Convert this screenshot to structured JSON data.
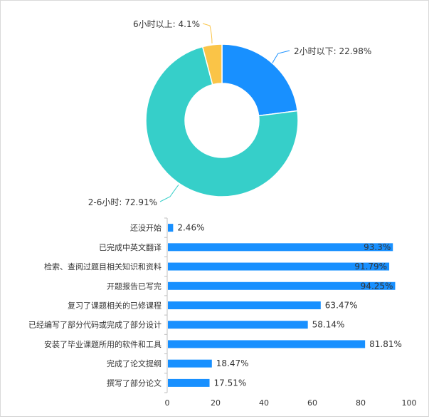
{
  "chart_data": [
    {
      "type": "pie",
      "donut": true,
      "slices": [
        {
          "label": "2小时以下",
          "value": 22.98,
          "display": "2小时以下: 22.98%",
          "color": "#1890ff"
        },
        {
          "label": "2-6小时",
          "value": 72.91,
          "display": "2-6小时: 72.91%",
          "color": "#36cfc9"
        },
        {
          "label": "6小时以上",
          "value": 4.1,
          "display": "6小时以上: 4.1%",
          "color": "#fac447"
        }
      ]
    },
    {
      "type": "bar",
      "orientation": "horizontal",
      "color": "#1890ff",
      "xlim": [
        0,
        100
      ],
      "xticks": [
        0,
        20,
        40,
        60,
        80,
        100
      ],
      "grid": false,
      "categories": [
        "还没开始",
        "已完成中英文翻译",
        "检索、查阅过题目相关知识和资料",
        "开题报告已写完",
        "复习了课题相关的已修课程",
        "已经编写了部分代码或完成了部分设计",
        "安装了毕业课题所用的软件和工具",
        "完成了论文提纲",
        "撰写了部分论文"
      ],
      "values": [
        2.46,
        93.3,
        91.79,
        94.25,
        63.47,
        58.14,
        81.81,
        18.47,
        17.51
      ],
      "labels": [
        "2.46%",
        "93.3%",
        "91.79%",
        "94.25%",
        "63.47%",
        "58.14%",
        "81.81%",
        "18.47%",
        "17.51%"
      ]
    }
  ]
}
